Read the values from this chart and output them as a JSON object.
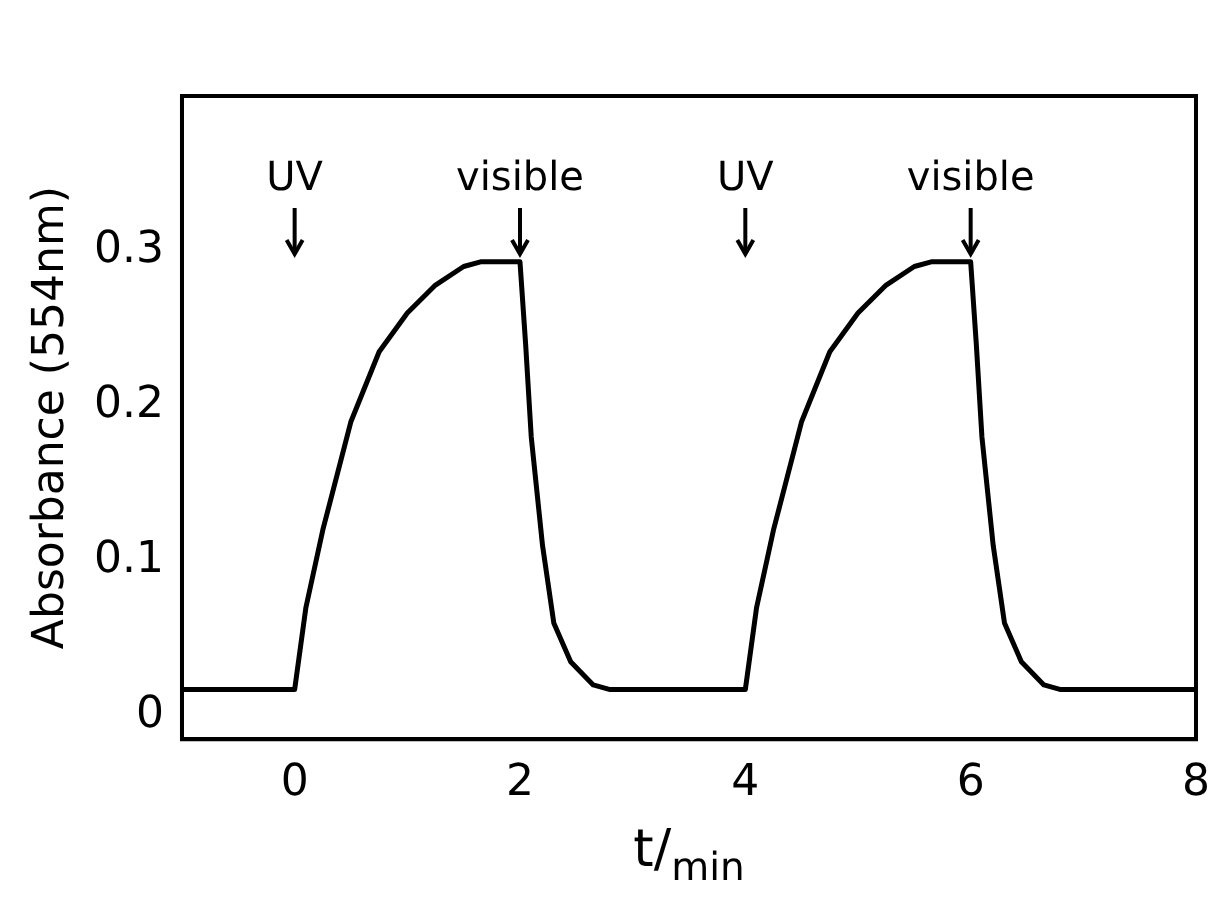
{
  "chart_data": {
    "type": "line",
    "xlabel": "t/$_{min}$",
    "ylabel": "Absorbance (554nm)",
    "series": [
      {
        "color": "#000000",
        "x": [
          -1,
          0,
          0.1,
          0.25,
          0.5,
          0.75,
          1,
          1.25,
          1.5,
          1.65,
          2,
          2.05,
          2.1,
          2.2,
          2.3,
          2.45,
          2.65,
          2.8,
          4,
          4.1,
          4.25,
          4.5,
          4.75,
          5,
          5.25,
          5.5,
          5.65,
          6,
          6.05,
          6.1,
          6.2,
          6.3,
          6.45,
          6.65,
          6.8,
          8
        ],
        "values": [
          0.017,
          0.017,
          0.07,
          0.12,
          0.19,
          0.235,
          0.26,
          0.278,
          0.29,
          0.293,
          0.293,
          0.24,
          0.18,
          0.11,
          0.06,
          0.035,
          0.02,
          0.017,
          0.017,
          0.07,
          0.12,
          0.19,
          0.235,
          0.26,
          0.278,
          0.29,
          0.293,
          0.293,
          0.24,
          0.18,
          0.11,
          0.06,
          0.035,
          0.02,
          0.017,
          0.017
        ]
      }
    ],
    "xlim": [
      -1,
      8
    ],
    "xticks": [
      0,
      2,
      4,
      6,
      8
    ],
    "ylim": [
      -0.015,
      0.4
    ],
    "yticks": [
      0,
      0.1,
      0.2,
      0.3
    ],
    "annotations": [
      "UV",
      "visible",
      "UV",
      "visible"
    ],
    "grid": false,
    "legend": false,
    "marker": "none",
    "line_style": "solid"
  }
}
